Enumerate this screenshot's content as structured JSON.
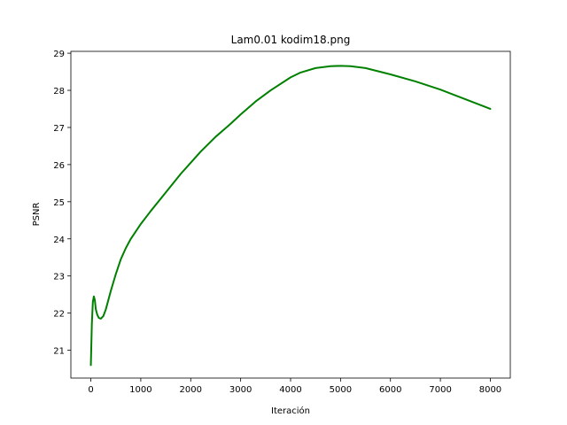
{
  "chart_data": {
    "type": "line",
    "title": "Lam0.01 kodim18.png",
    "xlabel": "Iteración",
    "ylabel": "PSNR",
    "xlim": [
      -400,
      8400
    ],
    "ylim": [
      20.25,
      29.05
    ],
    "xticks": [
      0,
      1000,
      2000,
      3000,
      4000,
      5000,
      6000,
      7000,
      8000
    ],
    "yticks": [
      21,
      22,
      23,
      24,
      25,
      26,
      27,
      28,
      29
    ],
    "grid": false,
    "series": [
      {
        "color": "#008000",
        "x": [
          0,
          20,
          40,
          60,
          80,
          100,
          130,
          160,
          200,
          250,
          300,
          350,
          400,
          500,
          600,
          700,
          800,
          1000,
          1200,
          1500,
          1800,
          2000,
          2200,
          2500,
          2800,
          3000,
          3300,
          3600,
          4000,
          4200,
          4500,
          4800,
          5000,
          5200,
          5500,
          6000,
          6500,
          7000,
          7500,
          8000
        ],
        "y": [
          20.6,
          21.7,
          22.3,
          22.45,
          22.35,
          22.1,
          21.95,
          21.87,
          21.85,
          21.92,
          22.1,
          22.35,
          22.6,
          23.05,
          23.45,
          23.75,
          24.0,
          24.4,
          24.75,
          25.25,
          25.75,
          26.05,
          26.35,
          26.75,
          27.1,
          27.35,
          27.7,
          28.0,
          28.35,
          28.48,
          28.6,
          28.65,
          28.66,
          28.65,
          28.6,
          28.43,
          28.24,
          28.02,
          27.76,
          27.5
        ]
      }
    ]
  }
}
